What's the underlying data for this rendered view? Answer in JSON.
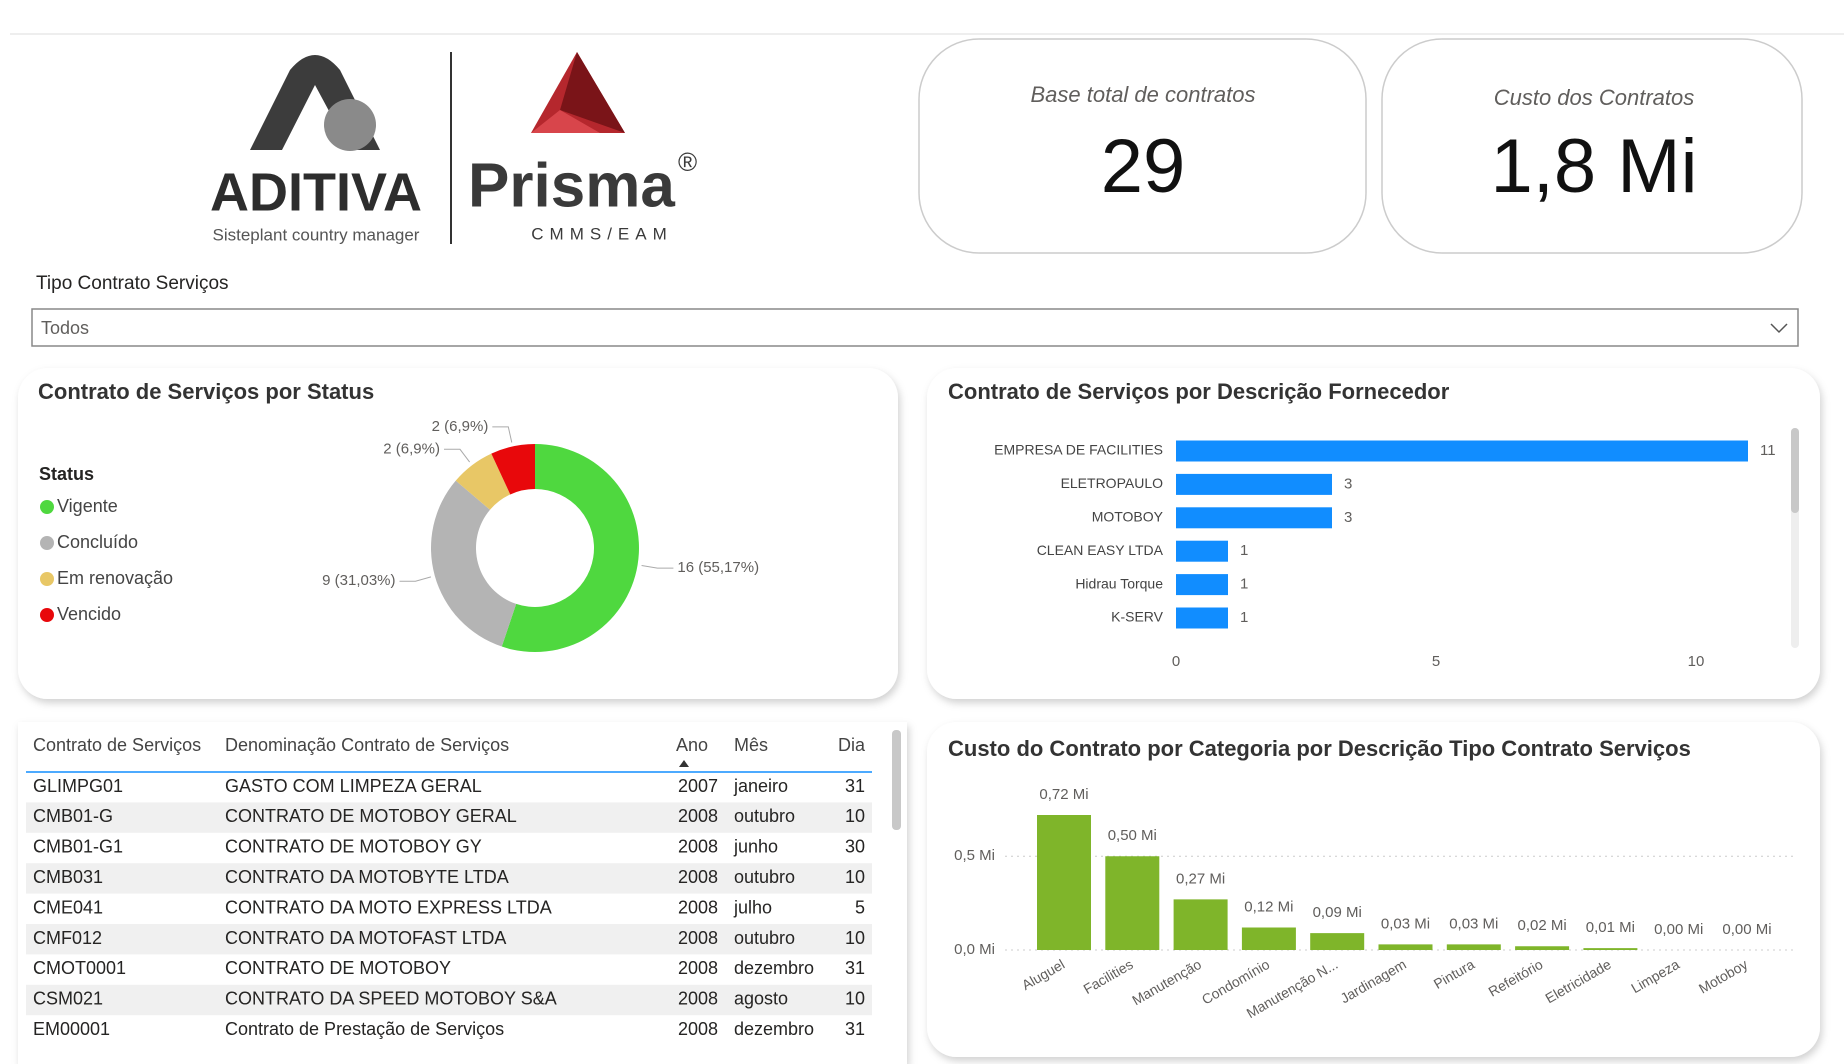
{
  "logos": {
    "aditiva": "ADITIVA",
    "aditiva_sub": "Sisteplant country manager",
    "prisma": "Prisma",
    "prisma_mark": "®",
    "prisma_sub": "CMMS/EAM"
  },
  "cards": [
    {
      "label": "Base total de contratos",
      "value": "29"
    },
    {
      "label": "Custo dos Contratos",
      "value": "1,8 Mi"
    }
  ],
  "filter": {
    "label": "Tipo Contrato Serviços",
    "selected": "Todos"
  },
  "chart_data": [
    {
      "type": "donut",
      "title": "Contrato de Serviços por Status",
      "legend_title": "Status",
      "categories": [
        "Vigente",
        "Concluído",
        "Em renovação",
        "Vencido"
      ],
      "values": [
        16,
        9,
        2,
        2
      ],
      "value_labels": [
        "16 (55,17%)",
        "9 (31,03%)",
        "2 (6,9%)",
        "2 (6,9%)"
      ],
      "colors": [
        "#4fd83f",
        "#b4b4b4",
        "#e8c766",
        "#e8080b"
      ]
    },
    {
      "type": "bar",
      "orientation": "horizontal",
      "title": "Contrato de Serviços por Descrição Fornecedor",
      "categories": [
        "EMPRESA DE FACILITIES",
        "ELETROPAULO",
        "MOTOBOY",
        "CLEAN EASY LTDA",
        "Hidrau Torque",
        "K-SERV"
      ],
      "values": [
        11,
        3,
        3,
        1,
        1,
        1
      ],
      "color": "#118dff",
      "xlim": [
        0,
        12
      ],
      "xticks": [
        0,
        5,
        10
      ]
    },
    {
      "type": "bar",
      "orientation": "vertical",
      "title": "Custo do Contrato por Categoria por Descrição Tipo Contrato Serviços",
      "categories": [
        "Aluguel",
        "Facilities",
        "Manutenção",
        "Condomínio",
        "Manutenção N...",
        "Jardinagem",
        "Pintura",
        "Refeitório",
        "Eletricidade",
        "Limpeza",
        "Motoboy"
      ],
      "values": [
        0.72,
        0.5,
        0.27,
        0.12,
        0.09,
        0.03,
        0.03,
        0.02,
        0.01,
        0.0,
        0.0
      ],
      "value_labels": [
        "0,72 Mi",
        "0,50 Mi",
        "0,27 Mi",
        "0,12 Mi",
        "0,09 Mi",
        "0,03 Mi",
        "0,03 Mi",
        "0,02 Mi",
        "0,01 Mi",
        "0,00 Mi",
        "0,00 Mi"
      ],
      "color": "#7fb52a",
      "ylim": [
        0,
        0.8
      ],
      "yticks": [
        {
          "value": 0,
          "label": "0,0 Mi"
        },
        {
          "value": 0.5,
          "label": "0,5 Mi"
        }
      ],
      "grid": true
    }
  ],
  "table": {
    "columns": [
      "Contrato de Serviços",
      "Denominação Contrato de Serviços",
      "Ano",
      "Mês",
      "Dia"
    ],
    "rows": [
      [
        "GLIMPG01",
        "GASTO COM LIMPEZA GERAL",
        2007,
        "janeiro",
        31
      ],
      [
        "CMB01-G",
        "CONTRATO DE MOTOBOY GERAL",
        2008,
        "outubro",
        10
      ],
      [
        "CMB01-G1",
        "CONTRATO DE MOTOBOY GY",
        2008,
        "junho",
        30
      ],
      [
        "CMB031",
        "CONTRATO DA MOTOBYTE LTDA",
        2008,
        "outubro",
        10
      ],
      [
        "CME041",
        "CONTRATO DA MOTO EXPRESS LTDA",
        2008,
        "julho",
        5
      ],
      [
        "CMF012",
        "CONTRATO DA MOTOFAST LTDA",
        2008,
        "outubro",
        10
      ],
      [
        "CMOT0001",
        "CONTRATO DE MOTOBOY",
        2008,
        "dezembro",
        31
      ],
      [
        "CSM021",
        "CONTRATO DA SPEED MOTOBOY S&A",
        2008,
        "agosto",
        10
      ],
      [
        "EM00001",
        "Contrato de Prestação de Serviços",
        2008,
        "dezembro",
        31
      ]
    ]
  }
}
